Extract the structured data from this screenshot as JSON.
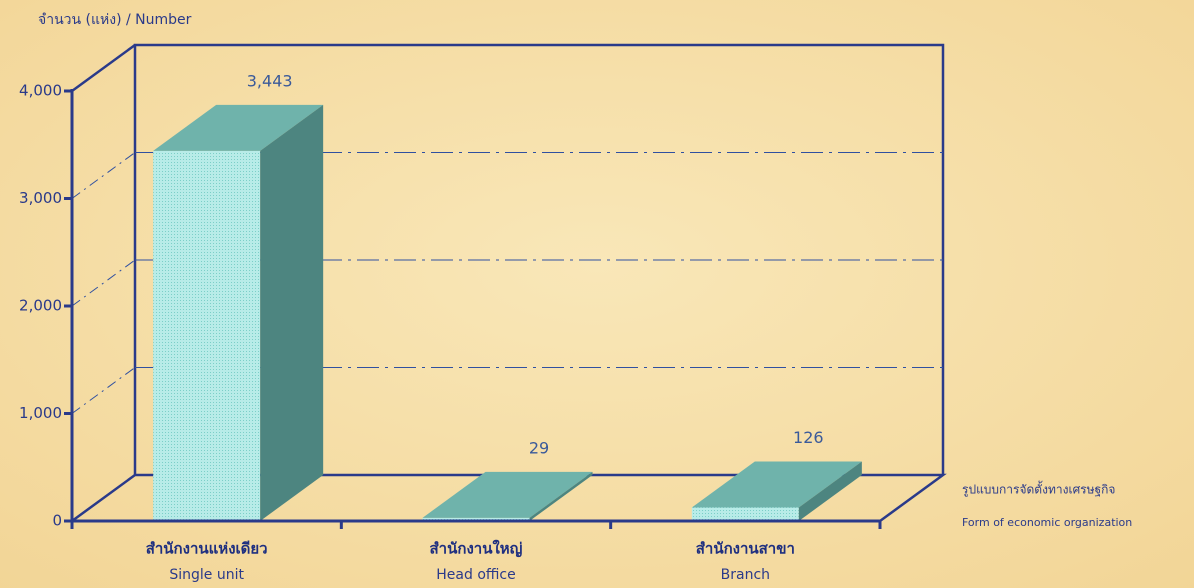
{
  "chart_data": {
    "type": "bar3d",
    "y_label": "จำนวน (แห่ง)  / Number",
    "x_label": [
      "รูปแบบการจัดตั้งทางเศรษฐกิจ",
      "Form of economic organization"
    ],
    "categories": [
      [
        "สำนักงานแห่งเดียว",
        "Single unit"
      ],
      [
        "สำนักงานใหญ่",
        "Head office"
      ],
      [
        "สำนักงานสาขา",
        "Branch"
      ]
    ],
    "values": [
      3443,
      29,
      126
    ],
    "value_labels": [
      "3,443",
      "29",
      "126"
    ],
    "colors": {
      "front": "#a9e6e2",
      "top": "#6fb3ab",
      "side": "#4d8580"
    },
    "ylim": [
      0,
      4000
    ],
    "yticks": [
      0,
      {
        "value": 1000,
        "label": "1,000"
      },
      {
        "value": 2000,
        "label": "2,000"
      },
      {
        "value": 3000,
        "label": "3,000"
      },
      {
        "value": 4000,
        "label": "4,000"
      }
    ],
    "grid": true
  }
}
